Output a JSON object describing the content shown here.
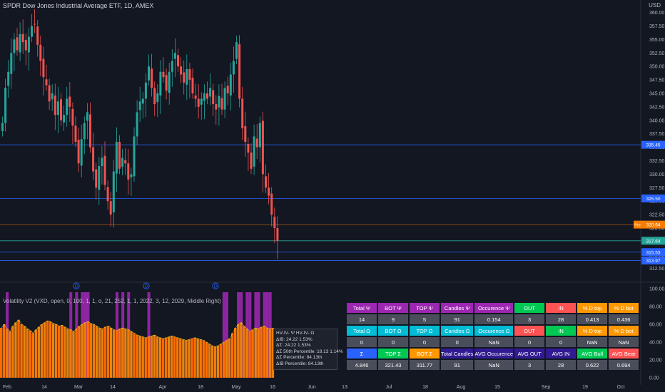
{
  "header": {
    "title": "SPDR Dow Jones Industrial Average ETF, 1D, AMEX",
    "currency": "USD"
  },
  "indicator": {
    "title": "Volatility V2 (VXD, open, 0, 100, 1, 1, α, 21, 252, 1, 1, 2022, 3, 12, 2029, Middle Right)",
    "info_lines": [
      "HV-IV- Ψ  HV-IV- Ω",
      "ΔIB: 24.22  1.53%",
      "ΔΣ: 24.22  1.53%",
      "ΔΣ 50th Percentile: 18.13  1.14%",
      "ΔΣ Percentile: 84.13th",
      "ΔIB Percentile: 84.13th"
    ],
    "d_markers": [
      "D",
      "D",
      "D"
    ]
  },
  "price_axis": {
    "ticks": [
      "360.00",
      "357.50",
      "355.00",
      "352.50",
      "350.00",
      "347.50",
      "345.00",
      "342.50",
      "340.00",
      "337.50",
      "335.00",
      "332.50",
      "330.00",
      "327.50",
      "325.00",
      "322.50",
      "320.00",
      "317.50",
      "315.00",
      "312.50"
    ],
    "lower_ticks": [
      "100.00",
      "80.00",
      "60.00",
      "40.00",
      "20.00",
      "0.00"
    ]
  },
  "price_labels": [
    {
      "text": "335.45",
      "value": 335.45,
      "color": "#2962ff"
    },
    {
      "text": "325.50",
      "value": 325.5,
      "color": "#2962ff"
    },
    {
      "text": "320.64",
      "value": 320.64,
      "color": "#f57c00",
      "prefix": "Pre"
    },
    {
      "text": "317.64",
      "value": 317.64,
      "color": "#26a69a"
    },
    {
      "text": "315.53",
      "value": 315.53,
      "color": "#2962ff"
    },
    {
      "text": "313.97",
      "value": 313.97,
      "color": "#2962ff"
    }
  ],
  "time_axis": {
    "labels": [
      "Feb",
      "14",
      "Mar",
      "14",
      "Apr",
      "18",
      "May",
      "16",
      "Jun",
      "13",
      "Jul",
      "18",
      "Aug",
      "15",
      "Sep",
      "19",
      "Oct"
    ]
  },
  "table": {
    "rows": [
      [
        {
          "text": "Total Ψ",
          "bg": "#9c27b0"
        },
        {
          "text": "BOT Ψ",
          "bg": "#9c27b0"
        },
        {
          "text": "TOP Ψ",
          "bg": "#9c27b0"
        },
        {
          "text": "Candles Ψ",
          "bg": "#9c27b0"
        },
        {
          "text": "Occurence Ψ",
          "bg": "#9c27b0"
        },
        {
          "text": "OUT",
          "bg": "#00c853"
        },
        {
          "text": "IN",
          "bg": "#ff5252"
        },
        {
          "text": "% D top",
          "bg": "#ff9800"
        },
        {
          "text": "% D bot",
          "bg": "#ff9800"
        }
      ],
      [
        {
          "text": "14",
          "bg": "#4a4e5a"
        },
        {
          "text": "9",
          "bg": "#4a4e5a"
        },
        {
          "text": "5",
          "bg": "#4a4e5a"
        },
        {
          "text": "91",
          "bg": "#4a4e5a"
        },
        {
          "text": "0.154",
          "bg": "#4a4e5a"
        },
        {
          "text": "3",
          "bg": "#4a4e5a"
        },
        {
          "text": "28",
          "bg": "#4a4e5a"
        },
        {
          "text": "0.413",
          "bg": "#4a4e5a"
        },
        {
          "text": "0.436",
          "bg": "#4a4e5a"
        }
      ],
      [
        {
          "text": "Total Ω",
          "bg": "#00bcd4"
        },
        {
          "text": "BOT Ω",
          "bg": "#00bcd4"
        },
        {
          "text": "TOP Ω",
          "bg": "#00bcd4"
        },
        {
          "text": "Candles Ω",
          "bg": "#00bcd4"
        },
        {
          "text": "Occurence Ω",
          "bg": "#00bcd4"
        },
        {
          "text": "OUT",
          "bg": "#ff5252"
        },
        {
          "text": "IN",
          "bg": "#00c853"
        },
        {
          "text": "% D top",
          "bg": "#ff9800"
        },
        {
          "text": "% D bot",
          "bg": "#ff9800"
        }
      ],
      [
        {
          "text": "0",
          "bg": "#4a4e5a"
        },
        {
          "text": "0",
          "bg": "#4a4e5a"
        },
        {
          "text": "0",
          "bg": "#4a4e5a"
        },
        {
          "text": "0",
          "bg": "#4a4e5a"
        },
        {
          "text": "NaN",
          "bg": "#4a4e5a"
        },
        {
          "text": "0",
          "bg": "#4a4e5a"
        },
        {
          "text": "0",
          "bg": "#4a4e5a"
        },
        {
          "text": "NaN",
          "bg": "#4a4e5a"
        },
        {
          "text": "NaN",
          "bg": "#4a4e5a"
        }
      ],
      [
        {
          "text": "Σ",
          "bg": "#2962ff"
        },
        {
          "text": "TOP Σ",
          "bg": "#00c853"
        },
        {
          "text": "BOT Σ",
          "bg": "#ff9800"
        },
        {
          "text": "Total Candles",
          "bg": "#311b92"
        },
        {
          "text": "AVG Occurence",
          "bg": "#311b92"
        },
        {
          "text": "AVG OUT",
          "bg": "#311b92"
        },
        {
          "text": "AVG IN",
          "bg": "#311b92"
        },
        {
          "text": "AVG Bull",
          "bg": "#00c853"
        },
        {
          "text": "AVG Bear",
          "bg": "#ff5252"
        }
      ],
      [
        {
          "text": "4.846",
          "bg": "#4a4e5a"
        },
        {
          "text": "321.43",
          "bg": "#4a4e5a"
        },
        {
          "text": "311.77",
          "bg": "#4a4e5a"
        },
        {
          "text": "91",
          "bg": "#4a4e5a"
        },
        {
          "text": "NaN",
          "bg": "#4a4e5a"
        },
        {
          "text": "3",
          "bg": "#4a4e5a"
        },
        {
          "text": "28",
          "bg": "#4a4e5a"
        },
        {
          "text": "0.622",
          "bg": "#4a4e5a"
        },
        {
          "text": "0.694",
          "bg": "#4a4e5a"
        }
      ]
    ]
  },
  "chart_data": {
    "type": "candlestick",
    "ylim": [
      311,
      361
    ],
    "up_color": "#26a69a",
    "down_color": "#ef5350",
    "hlines": [
      335.45,
      325.5,
      320.64,
      317.64,
      315.53,
      313.97
    ],
    "closes": [
      339.5,
      346.0,
      349.0,
      352.5,
      355.0,
      353.0,
      356.0,
      354.5,
      353.0,
      355.5,
      357.5,
      357.8,
      354.0,
      351.0,
      348.0,
      346.5,
      343.5,
      345.0,
      341.0,
      343.5,
      340.0,
      341.0,
      344.0,
      342.5,
      339.0,
      336.0,
      332.0,
      336.5,
      339.5,
      341.5,
      335.0,
      330.5,
      327.5,
      331.5,
      333.0,
      328.0,
      325.0,
      322.5,
      330.5,
      336.0,
      331.0,
      333.0,
      332.0,
      329.0,
      330.0,
      337.0,
      341.5,
      343.5,
      344.0,
      347.0,
      350.0,
      346.0,
      343.0,
      345.0,
      349.0,
      348.0,
      345.5,
      349.0,
      351.0,
      352.5,
      350.0,
      348.5,
      347.0,
      349.5,
      347.5,
      345.0,
      344.0,
      342.5,
      344.0,
      345.0,
      344.0,
      346.0,
      343.0,
      342.0,
      344.5,
      342.0,
      346.0,
      345.0,
      348.5,
      351.0,
      354.5,
      344.0,
      338.5,
      336.0,
      334.0,
      331.0,
      337.0,
      335.0,
      339.5,
      330.0,
      327.5,
      326.0,
      322.5,
      320.0,
      317.64
    ],
    "vol_colors": [
      "#ff6d00",
      "#ff7400",
      "#f07a0c",
      "#e8820e",
      "#ef7b0c",
      "#e78410",
      "#ff6600",
      "#ff7000",
      "#e7870f",
      "#f27a0c"
    ],
    "vol_values": [
      56,
      60,
      55,
      52,
      58,
      62,
      65,
      60,
      58,
      55,
      53,
      50,
      54,
      57,
      60,
      62,
      64,
      63,
      61,
      60,
      58,
      59,
      57,
      55,
      54,
      52,
      55,
      58,
      60,
      62,
      63,
      61,
      60,
      58,
      56,
      55,
      57,
      58,
      56,
      54,
      53,
      55,
      56,
      55,
      54,
      52,
      50,
      48,
      47,
      46,
      45,
      46,
      47,
      48,
      46,
      45,
      44,
      45,
      46,
      47,
      46,
      45,
      44,
      43,
      42,
      43,
      44,
      45,
      44,
      43,
      42,
      40,
      38,
      36,
      35,
      36,
      38,
      40,
      42,
      44,
      50,
      56,
      60,
      62,
      58,
      55,
      52,
      54,
      56,
      55,
      57,
      58,
      56,
      55,
      56
    ],
    "purple_bar_indices": [
      2,
      24,
      26,
      28,
      29,
      30,
      40,
      42,
      44,
      51,
      77,
      78,
      82,
      83,
      85,
      86,
      88,
      89,
      91,
      92,
      93
    ]
  }
}
